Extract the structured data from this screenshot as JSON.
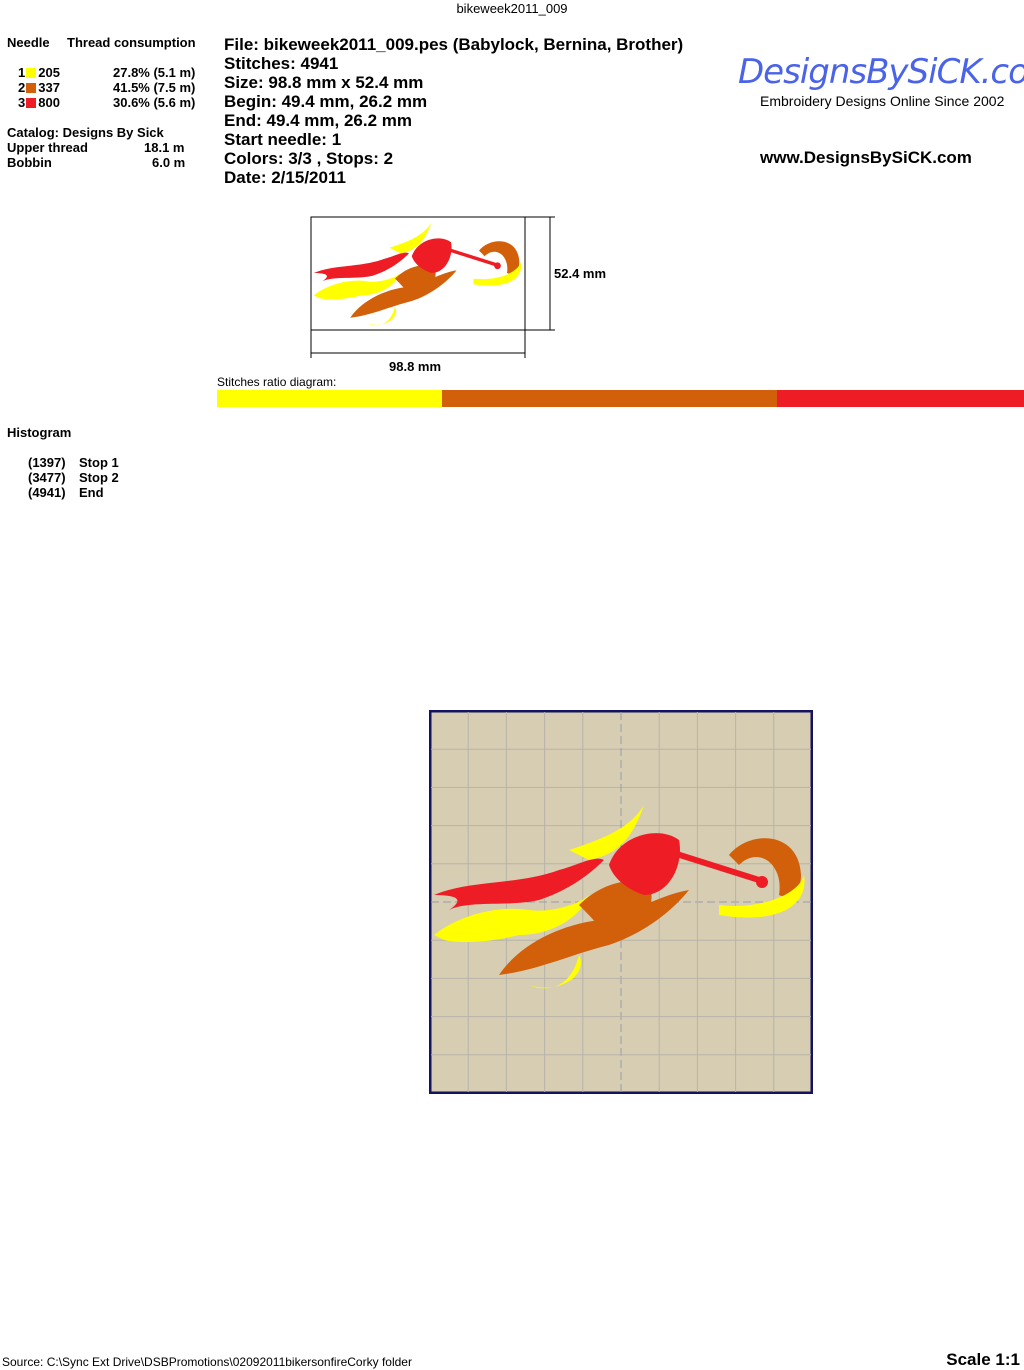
{
  "window_title": "bikeweek2011_009",
  "needles": {
    "header_needle": "Needle",
    "header_thread": "Thread consumption",
    "items": [
      {
        "n": "1",
        "color": "#ffff00",
        "code": "205",
        "pct": "27.8% (5.1 m)"
      },
      {
        "n": "2",
        "color": "#d2600a",
        "code": "337",
        "pct": "41.5% (7.5 m)"
      },
      {
        "n": "3",
        "color": "#ee1c25",
        "code": "800",
        "pct": "30.6% (5.6 m)"
      }
    ]
  },
  "catalog": "Catalog: Designs By Sick",
  "upper_thread_label": "Upper thread",
  "upper_thread_value": "18.1 m",
  "bobbin_label": "Bobbin",
  "bobbin_value": "6.0 m",
  "info": {
    "file": "File: bikeweek2011_009.pes  (Babylock, Bernina, Brother)",
    "stitches": "Stitches: 4941",
    "size": "Size: 98.8 mm x 52.4 mm",
    "begin": "Begin: 49.4 mm, 26.2 mm",
    "end": "End: 49.4 mm, 26.2 mm",
    "start_needle": "Start needle: 1",
    "colors": "Colors: 3/3 , Stops: 2",
    "date": "Date: 2/15/2011"
  },
  "logo": {
    "text": "DesignsBySiCK.com",
    "tagline": "Embroidery Designs Online Since 2002",
    "url": "www.DesignsBySiCK.com"
  },
  "dims": {
    "height": "52.4 mm",
    "width": "98.8 mm"
  },
  "ratio": {
    "label": "Stitches ratio diagram:",
    "segments": [
      {
        "color": "#ffff00",
        "pct": 27.8
      },
      {
        "color": "#d2600a",
        "pct": 41.5
      },
      {
        "color": "#ee1c25",
        "pct": 30.6
      }
    ]
  },
  "histogram": {
    "title": "Histogram",
    "items": [
      {
        "count": "(1397)",
        "label": "Stop 1"
      },
      {
        "count": "(3477)",
        "label": "Stop 2"
      },
      {
        "count": "(4941)",
        "label": "End"
      }
    ]
  },
  "footer": {
    "source": "Source: C:\\Sync Ext Drive\\DSBPromotions\\02092011bikersonfireCorky folder",
    "scale": "Scale 1:1"
  }
}
